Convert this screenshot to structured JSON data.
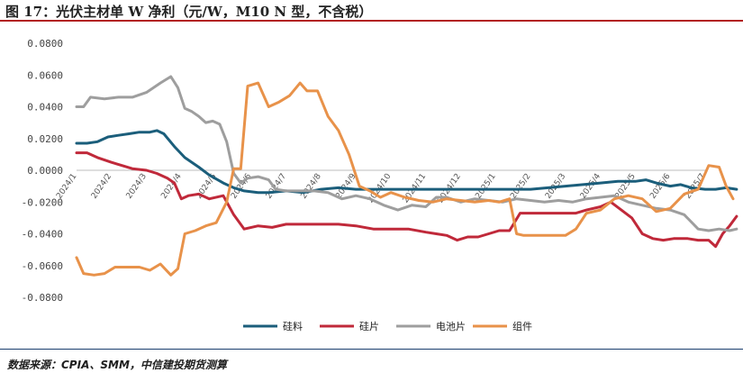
{
  "title": "图 17：光伏主材单 W 净利（元/W，M10 N 型，不含税）",
  "source": "数据来源：CPIA、SMM，中信建投期货测算",
  "chart_data": {
    "type": "line",
    "title": "图 17：光伏主材单 W 净利（元/W，M10 N 型，不含税）",
    "xlabel": "",
    "ylabel": "",
    "x_ticks": [
      "2024/1",
      "2024/2",
      "2024/3",
      "2024/4",
      "2024/5",
      "2024/6",
      "2024/7",
      "2024/8",
      "2024/9",
      "2024/10",
      "2024/11",
      "2024/12",
      "2025/1",
      "2025/2",
      "2025/3",
      "2025/4",
      "2025/5",
      "2025/6",
      "2025/7"
    ],
    "y_ticks": [
      "0.0800",
      "0.0600",
      "0.0400",
      "0.0200",
      "0.0000",
      "-0.0200",
      "-0.0400",
      "-0.0600",
      "-0.0800"
    ],
    "ylim": [
      -0.08,
      0.08
    ],
    "grid": false,
    "legend_position": "bottom",
    "series": [
      {
        "name": "硅料",
        "color": "#1b5e7b",
        "points": [
          [
            0,
            0.017
          ],
          [
            0.3,
            0.017
          ],
          [
            0.6,
            0.018
          ],
          [
            0.9,
            0.021
          ],
          [
            1.2,
            0.022
          ],
          [
            1.5,
            0.023
          ],
          [
            1.8,
            0.024
          ],
          [
            2.1,
            0.024
          ],
          [
            2.3,
            0.025
          ],
          [
            2.5,
            0.023
          ],
          [
            2.8,
            0.015
          ],
          [
            3.1,
            0.008
          ],
          [
            3.5,
            0.002
          ],
          [
            3.8,
            -0.003
          ],
          [
            4.2,
            -0.008
          ],
          [
            4.5,
            -0.011
          ],
          [
            4.8,
            -0.013
          ],
          [
            5.2,
            -0.014
          ],
          [
            5.5,
            -0.014
          ],
          [
            6,
            -0.013
          ],
          [
            6.5,
            -0.014
          ],
          [
            7,
            -0.012
          ],
          [
            7.5,
            -0.011
          ],
          [
            8,
            -0.012
          ],
          [
            8.5,
            -0.012
          ],
          [
            9,
            -0.012
          ],
          [
            9.5,
            -0.012
          ],
          [
            10,
            -0.012
          ],
          [
            10.5,
            -0.012
          ],
          [
            11,
            -0.012
          ],
          [
            11.5,
            -0.012
          ],
          [
            12,
            -0.012
          ],
          [
            12.5,
            -0.012
          ],
          [
            13,
            -0.012
          ],
          [
            13.5,
            -0.011
          ],
          [
            14,
            -0.01
          ],
          [
            14.5,
            -0.009
          ],
          [
            15,
            -0.008
          ],
          [
            15.5,
            -0.007
          ],
          [
            16,
            -0.007
          ],
          [
            16.3,
            -0.006
          ],
          [
            16.6,
            -0.008
          ],
          [
            17,
            -0.01
          ],
          [
            17.3,
            -0.009
          ],
          [
            17.6,
            -0.011
          ],
          [
            18,
            -0.012
          ],
          [
            18.3,
            -0.012
          ],
          [
            18.6,
            -0.011
          ],
          [
            18.9,
            -0.012
          ]
        ]
      },
      {
        "name": "硅片",
        "color": "#c0293a",
        "points": [
          [
            0,
            0.011
          ],
          [
            0.3,
            0.011
          ],
          [
            0.6,
            0.008
          ],
          [
            1,
            0.005
          ],
          [
            1.3,
            0.003
          ],
          [
            1.6,
            0.001
          ],
          [
            2,
            0
          ],
          [
            2.3,
            -0.002
          ],
          [
            2.6,
            -0.005
          ],
          [
            2.8,
            -0.008
          ],
          [
            3,
            -0.018
          ],
          [
            3.2,
            -0.016
          ],
          [
            3.5,
            -0.015
          ],
          [
            3.8,
            -0.018
          ],
          [
            4.2,
            -0.016
          ],
          [
            4.5,
            -0.028
          ],
          [
            4.8,
            -0.037
          ],
          [
            5.2,
            -0.035
          ],
          [
            5.6,
            -0.036
          ],
          [
            6,
            -0.034
          ],
          [
            6.5,
            -0.034
          ],
          [
            7,
            -0.034
          ],
          [
            7.5,
            -0.034
          ],
          [
            8,
            -0.035
          ],
          [
            8.5,
            -0.037
          ],
          [
            9,
            -0.037
          ],
          [
            9.5,
            -0.037
          ],
          [
            10,
            -0.039
          ],
          [
            10.3,
            -0.04
          ],
          [
            10.6,
            -0.041
          ],
          [
            10.9,
            -0.044
          ],
          [
            11.2,
            -0.042
          ],
          [
            11.5,
            -0.042
          ],
          [
            11.8,
            -0.04
          ],
          [
            12.1,
            -0.038
          ],
          [
            12.4,
            -0.038
          ],
          [
            12.7,
            -0.027
          ],
          [
            13,
            -0.027
          ],
          [
            13.5,
            -0.027
          ],
          [
            14,
            -0.027
          ],
          [
            14.3,
            -0.027
          ],
          [
            14.6,
            -0.025
          ],
          [
            15,
            -0.023
          ],
          [
            15.3,
            -0.02
          ],
          [
            15.6,
            -0.025
          ],
          [
            15.9,
            -0.03
          ],
          [
            16.2,
            -0.04
          ],
          [
            16.5,
            -0.043
          ],
          [
            16.8,
            -0.044
          ],
          [
            17.1,
            -0.043
          ],
          [
            17.5,
            -0.043
          ],
          [
            17.8,
            -0.044
          ],
          [
            18.1,
            -0.044
          ],
          [
            18.3,
            -0.048
          ],
          [
            18.5,
            -0.04
          ],
          [
            18.7,
            -0.035
          ],
          [
            18.9,
            -0.029
          ]
        ]
      },
      {
        "name": "电池片",
        "color": "#9e9e9e",
        "points": [
          [
            0,
            0.04
          ],
          [
            0.2,
            0.04
          ],
          [
            0.4,
            0.046
          ],
          [
            0.8,
            0.045
          ],
          [
            1.2,
            0.046
          ],
          [
            1.6,
            0.046
          ],
          [
            2,
            0.049
          ],
          [
            2.4,
            0.055
          ],
          [
            2.7,
            0.059
          ],
          [
            2.9,
            0.052
          ],
          [
            3.1,
            0.039
          ],
          [
            3.3,
            0.037
          ],
          [
            3.5,
            0.034
          ],
          [
            3.7,
            0.03
          ],
          [
            3.9,
            0.031
          ],
          [
            4.1,
            0.029
          ],
          [
            4.3,
            0.018
          ],
          [
            4.5,
            -0.002
          ],
          [
            4.7,
            -0.008
          ],
          [
            4.9,
            -0.005
          ],
          [
            5.2,
            -0.004
          ],
          [
            5.5,
            -0.006
          ],
          [
            5.7,
            -0.012
          ],
          [
            6,
            -0.013
          ],
          [
            6.4,
            -0.013
          ],
          [
            6.8,
            -0.013
          ],
          [
            7.2,
            -0.014
          ],
          [
            7.6,
            -0.018
          ],
          [
            8,
            -0.016
          ],
          [
            8.4,
            -0.018
          ],
          [
            8.8,
            -0.022
          ],
          [
            9.2,
            -0.025
          ],
          [
            9.6,
            -0.022
          ],
          [
            10,
            -0.023
          ],
          [
            10.3,
            -0.017
          ],
          [
            10.6,
            -0.017
          ],
          [
            11,
            -0.02
          ],
          [
            11.4,
            -0.018
          ],
          [
            11.8,
            -0.019
          ],
          [
            12.2,
            -0.02
          ],
          [
            12.6,
            -0.018
          ],
          [
            13,
            -0.019
          ],
          [
            13.4,
            -0.02
          ],
          [
            13.8,
            -0.019
          ],
          [
            14.2,
            -0.02
          ],
          [
            14.6,
            -0.018
          ],
          [
            15,
            -0.017
          ],
          [
            15.4,
            -0.016
          ],
          [
            15.8,
            -0.02
          ],
          [
            16.2,
            -0.022
          ],
          [
            16.6,
            -0.024
          ],
          [
            17,
            -0.025
          ],
          [
            17.4,
            -0.028
          ],
          [
            17.8,
            -0.037
          ],
          [
            18.1,
            -0.038
          ],
          [
            18.4,
            -0.037
          ],
          [
            18.7,
            -0.038
          ],
          [
            18.9,
            -0.037
          ]
        ]
      },
      {
        "name": "组件",
        "color": "#e8924a",
        "points": [
          [
            0,
            -0.055
          ],
          [
            0.2,
            -0.065
          ],
          [
            0.5,
            -0.066
          ],
          [
            0.8,
            -0.065
          ],
          [
            1.1,
            -0.061
          ],
          [
            1.5,
            -0.061
          ],
          [
            1.8,
            -0.061
          ],
          [
            2.1,
            -0.063
          ],
          [
            2.4,
            -0.059
          ],
          [
            2.7,
            -0.066
          ],
          [
            2.9,
            -0.062
          ],
          [
            3.1,
            -0.04
          ],
          [
            3.4,
            -0.038
          ],
          [
            3.7,
            -0.035
          ],
          [
            4,
            -0.033
          ],
          [
            4.3,
            -0.02
          ],
          [
            4.5,
            0.001
          ],
          [
            4.7,
            0.001
          ],
          [
            4.9,
            0.053
          ],
          [
            5.2,
            0.055
          ],
          [
            5.5,
            0.04
          ],
          [
            5.8,
            0.043
          ],
          [
            6.1,
            0.047
          ],
          [
            6.4,
            0.055
          ],
          [
            6.6,
            0.05
          ],
          [
            6.9,
            0.05
          ],
          [
            7.2,
            0.034
          ],
          [
            7.5,
            0.025
          ],
          [
            7.8,
            0.01
          ],
          [
            8.1,
            -0.01
          ],
          [
            8.4,
            -0.013
          ],
          [
            8.7,
            -0.017
          ],
          [
            9,
            -0.014
          ],
          [
            9.4,
            -0.017
          ],
          [
            9.8,
            -0.019
          ],
          [
            10.2,
            -0.02
          ],
          [
            10.6,
            -0.018
          ],
          [
            11,
            -0.019
          ],
          [
            11.4,
            -0.02
          ],
          [
            11.8,
            -0.019
          ],
          [
            12.1,
            -0.02
          ],
          [
            12.4,
            -0.018
          ],
          [
            12.6,
            -0.04
          ],
          [
            12.8,
            -0.041
          ],
          [
            13.2,
            -0.041
          ],
          [
            13.6,
            -0.041
          ],
          [
            14,
            -0.041
          ],
          [
            14.3,
            -0.037
          ],
          [
            14.6,
            -0.027
          ],
          [
            15,
            -0.025
          ],
          [
            15.4,
            -0.018
          ],
          [
            15.8,
            -0.016
          ],
          [
            16.2,
            -0.018
          ],
          [
            16.6,
            -0.026
          ],
          [
            17,
            -0.024
          ],
          [
            17.4,
            -0.015
          ],
          [
            17.8,
            -0.012
          ],
          [
            18.1,
            0.003
          ],
          [
            18.4,
            0.002
          ],
          [
            18.6,
            -0.01
          ],
          [
            18.8,
            -0.018
          ]
        ]
      }
    ]
  }
}
